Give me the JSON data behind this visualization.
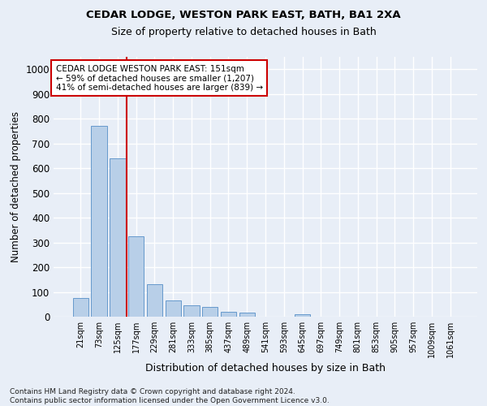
{
  "title1": "CEDAR LODGE, WESTON PARK EAST, BATH, BA1 2XA",
  "title2": "Size of property relative to detached houses in Bath",
  "xlabel": "Distribution of detached houses by size in Bath",
  "ylabel": "Number of detached properties",
  "footnote": "Contains HM Land Registry data © Crown copyright and database right 2024.\nContains public sector information licensed under the Open Government Licence v3.0.",
  "bar_labels": [
    "21sqm",
    "73sqm",
    "125sqm",
    "177sqm",
    "229sqm",
    "281sqm",
    "333sqm",
    "385sqm",
    "437sqm",
    "489sqm",
    "541sqm",
    "593sqm",
    "645sqm",
    "697sqm",
    "749sqm",
    "801sqm",
    "853sqm",
    "905sqm",
    "957sqm",
    "1009sqm",
    "1061sqm"
  ],
  "bar_values": [
    75,
    770,
    640,
    325,
    130,
    65,
    45,
    40,
    20,
    15,
    0,
    0,
    10,
    0,
    0,
    0,
    0,
    0,
    0,
    0,
    0
  ],
  "bar_color": "#b8cfe8",
  "bar_edge_color": "#6699cc",
  "background_color": "#e8eef7",
  "grid_color": "#ffffff",
  "vline_x": 2.5,
  "vline_color": "#cc0000",
  "annotation_text": "CEDAR LODGE WESTON PARK EAST: 151sqm\n← 59% of detached houses are smaller (1,207)\n41% of semi-detached houses are larger (839) →",
  "annotation_box_color": "#ffffff",
  "annotation_box_edge": "#cc0000",
  "ylim": [
    0,
    1050
  ],
  "yticks": [
    0,
    100,
    200,
    300,
    400,
    500,
    600,
    700,
    800,
    900,
    1000
  ],
  "title1_fontsize": 9.5,
  "title2_fontsize": 9.0,
  "ylabel_fontsize": 8.5,
  "xlabel_fontsize": 9.0,
  "annot_fontsize": 7.5,
  "footnote_fontsize": 6.5
}
